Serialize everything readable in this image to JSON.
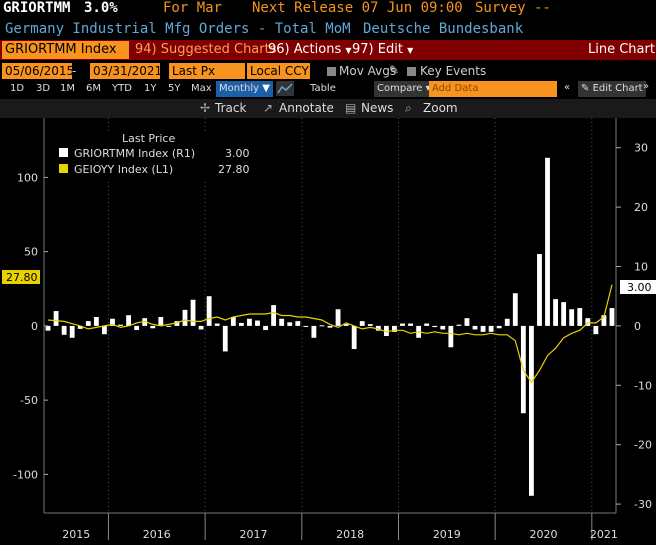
{
  "header": {
    "ticker": "GRIORTMM",
    "value": "3.0%",
    "for_label": "For Mar",
    "next_release": "Next Release 07 Jun 09:00",
    "survey": "Survey --",
    "description": "Germany Industrial Mfg Orders - Total MoM",
    "source": "Deutsche Bundesbank"
  },
  "toolbar": {
    "security": "GRIORTMM Index",
    "suggested": "94) Suggested Charts",
    "actions": "96) Actions",
    "edit": "97) Edit",
    "chart_type": "Line Chart"
  },
  "settings": {
    "start_date": "05/06/2015",
    "end_date": "03/31/2021",
    "field": "Last Px",
    "currency": "Local CCY",
    "mov_avgs": "Mov Avgs",
    "key_events": "Key Events"
  },
  "periods": [
    "1D",
    "3D",
    "1M",
    "6M",
    "YTD",
    "1Y",
    "5Y",
    "Max"
  ],
  "frequency": "Monthly",
  "table_label": "Table",
  "compare_label": "Compare",
  "add_data_placeholder": "Add Data",
  "edit_chart": "Edit Chart",
  "tools": {
    "track": "Track",
    "annotate": "Annotate",
    "news": "News",
    "zoom": "Zoom"
  },
  "legend": {
    "title": "Last Price",
    "series1_name": "GRIORTMM Index  (R1)",
    "series1_value": "3.00",
    "series2_name": "GEIOYY Index  (L1)",
    "series2_value": "27.80"
  },
  "markers": {
    "left": "27.80",
    "right": "3.00"
  },
  "colors": {
    "accent": "#f7931e",
    "bar_series": "#ffffff",
    "line_series": "#e8d200",
    "header_bar": "#800000"
  },
  "chart_data": {
    "type": "bar",
    "x": [
      "2015-05",
      "2015-06",
      "2015-07",
      "2015-08",
      "2015-09",
      "2015-10",
      "2015-11",
      "2015-12",
      "2016-01",
      "2016-02",
      "2016-03",
      "2016-04",
      "2016-05",
      "2016-06",
      "2016-07",
      "2016-08",
      "2016-09",
      "2016-10",
      "2016-11",
      "2016-12",
      "2017-01",
      "2017-02",
      "2017-03",
      "2017-04",
      "2017-05",
      "2017-06",
      "2017-07",
      "2017-08",
      "2017-09",
      "2017-10",
      "2017-11",
      "2017-12",
      "2018-01",
      "2018-02",
      "2018-03",
      "2018-04",
      "2018-05",
      "2018-06",
      "2018-07",
      "2018-08",
      "2018-09",
      "2018-10",
      "2018-11",
      "2018-12",
      "2019-01",
      "2019-02",
      "2019-03",
      "2019-04",
      "2019-05",
      "2019-06",
      "2019-07",
      "2019-08",
      "2019-09",
      "2019-10",
      "2019-11",
      "2019-12",
      "2020-01",
      "2020-02",
      "2020-03",
      "2020-04",
      "2020-05",
      "2020-06",
      "2020-07",
      "2020-08",
      "2020-09",
      "2020-10",
      "2020-11",
      "2020-12",
      "2021-01",
      "2021-02",
      "2021-03"
    ],
    "series": [
      {
        "name": "GRIORTMM Index (R1)",
        "type": "bar",
        "axis": "right",
        "values": [
          -0.8,
          2.5,
          -1.5,
          -2.0,
          -0.5,
          0.8,
          1.5,
          -1.4,
          1.2,
          0.2,
          1.8,
          -0.7,
          1.3,
          -0.4,
          1.5,
          -0.1,
          0.8,
          2.7,
          4.4,
          -0.6,
          5.0,
          0.4,
          -4.3,
          1.5,
          0.5,
          1.2,
          0.9,
          -0.7,
          3.5,
          1.2,
          0.6,
          0.8,
          0.0,
          -2.0,
          0.1,
          -0.3,
          2.8,
          0.3,
          -3.9,
          0.8,
          0.3,
          -0.8,
          -1.7,
          -1.0,
          0.4,
          0.4,
          -2.0,
          0.4,
          -0.2,
          -0.6,
          -3.6,
          0.2,
          1.3,
          -0.6,
          -1.0,
          -1.0,
          -0.4,
          1.2,
          5.5,
          -14.7,
          -28.6,
          12.1,
          28.3,
          4.5,
          4.0,
          2.8,
          3.0,
          1.3,
          -1.4,
          1.8,
          3.0
        ]
      },
      {
        "name": "GEIOYY Index (L1)",
        "type": "line",
        "axis": "left",
        "values": [
          4.0,
          3.5,
          3.0,
          1.5,
          0.0,
          -2.0,
          -1.0,
          0.0,
          1.0,
          -1.0,
          0.0,
          2.0,
          3.0,
          1.0,
          0.0,
          1.0,
          2.0,
          4.0,
          3.0,
          3.0,
          5.0,
          6.0,
          4.0,
          6.0,
          7.0,
          8.0,
          8.0,
          8.0,
          9.0,
          7.0,
          7.0,
          6.0,
          6.0,
          5.0,
          4.0,
          1.0,
          -1.0,
          2.0,
          0.0,
          -2.0,
          -1.0,
          -2.0,
          -4.0,
          -3.0,
          -3.0,
          -5.0,
          -4.0,
          -5.0,
          -4.0,
          -5.0,
          -5.0,
          -6.0,
          -5.0,
          -6.0,
          -6.0,
          -5.0,
          -6.0,
          -6.0,
          -10.0,
          -30.0,
          -38.0,
          -30.0,
          -20.0,
          -15.0,
          -8.0,
          -5.0,
          -3.0,
          2.0,
          2.0,
          6.0,
          27.8
        ]
      }
    ],
    "left_axis": {
      "ticks": [
        100,
        50,
        0,
        -50,
        -100
      ],
      "ylim": [
        -126,
        140
      ]
    },
    "right_axis": {
      "ticks": [
        30,
        20,
        10,
        0,
        -10,
        -20,
        -30
      ],
      "ylim": [
        -31.5,
        35
      ]
    },
    "year_labels": [
      "2015",
      "2016",
      "2017",
      "2018",
      "2019",
      "2020",
      "2021"
    ],
    "grid": "vertical dotted at year boundaries",
    "legend_position": "top-left"
  }
}
